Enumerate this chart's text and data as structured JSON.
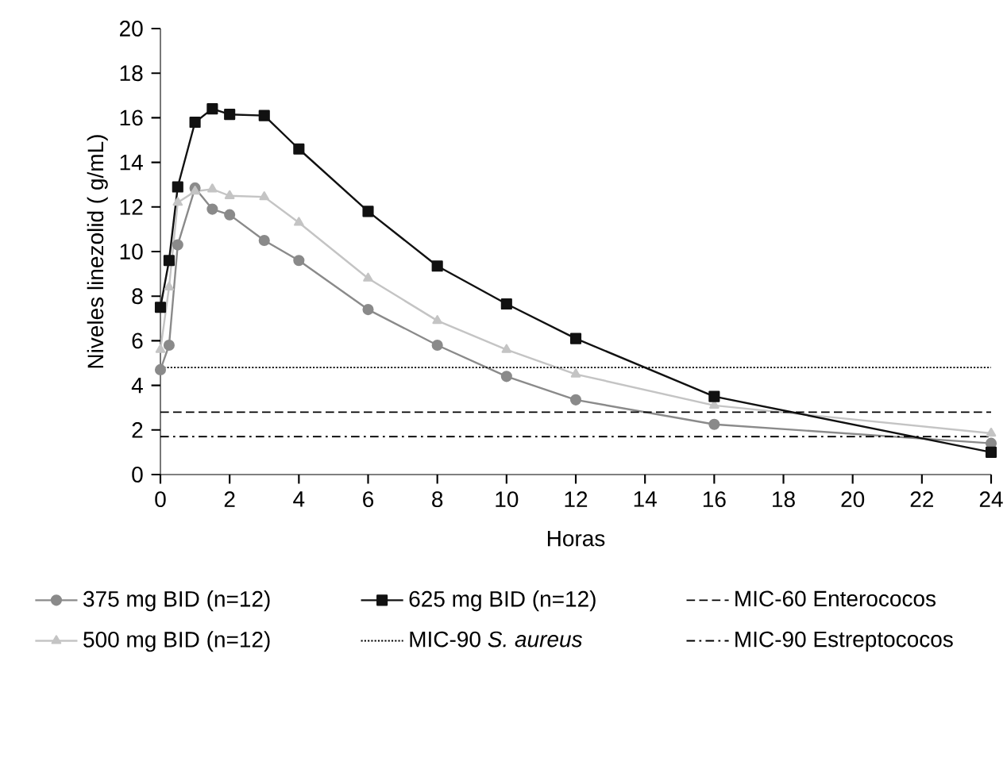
{
  "chart_data": {
    "type": "line",
    "xlabel": "Horas",
    "ylabel": "Niveles linezolid ( g/mL)",
    "xlim": [
      0,
      24
    ],
    "xticks": [
      0,
      2,
      4,
      6,
      8,
      10,
      12,
      14,
      16,
      18,
      20,
      22,
      24
    ],
    "ylim": [
      0,
      20
    ],
    "yticks": [
      0,
      2,
      4,
      6,
      8,
      10,
      12,
      14,
      16,
      18,
      20
    ],
    "legend": "bottom",
    "grid": false,
    "series": [
      {
        "name": "375 mg BID (n=12)",
        "color": "#8a8a8a",
        "marker": "circle",
        "x": [
          0,
          0.25,
          0.5,
          1,
          1.5,
          2,
          3,
          4,
          6,
          8,
          10,
          12,
          16,
          24
        ],
        "values": [
          4.7,
          5.8,
          10.3,
          12.85,
          11.9,
          11.65,
          10.5,
          9.6,
          7.4,
          5.8,
          4.4,
          3.35,
          2.25,
          1.4
        ]
      },
      {
        "name": "500 mg BID (n=12)",
        "color": "#c4c4c4",
        "marker": "triangle",
        "x": [
          0,
          0.25,
          0.5,
          1,
          1.5,
          2,
          3,
          4,
          6,
          8,
          10,
          12,
          16,
          24
        ],
        "values": [
          5.6,
          8.4,
          12.2,
          12.7,
          12.8,
          12.5,
          12.45,
          11.3,
          8.8,
          6.9,
          5.6,
          4.5,
          3.1,
          1.85
        ]
      },
      {
        "name": "625 mg BID (n=12)",
        "color": "#111111",
        "marker": "square",
        "x": [
          0,
          0.25,
          0.5,
          1,
          1.5,
          2,
          3,
          4,
          6,
          8,
          10,
          12,
          16,
          24
        ],
        "values": [
          7.5,
          9.6,
          12.9,
          15.8,
          16.4,
          16.15,
          16.1,
          14.6,
          11.8,
          9.35,
          7.65,
          6.1,
          3.5,
          1.0
        ]
      }
    ],
    "ref_lines": [
      {
        "axis": "y",
        "value": 4.8,
        "label": "MIC-90 *S. aureus*",
        "color": "#000000",
        "line_style": "dotted"
      },
      {
        "axis": "y",
        "value": 2.8,
        "label": "MIC-60 Enterococos",
        "color": "#000000",
        "line_style": "dashed"
      },
      {
        "axis": "y",
        "value": 1.7,
        "label": "MIC-90 Estreptococos",
        "color": "#000000",
        "line_style": "dashdot"
      }
    ]
  }
}
